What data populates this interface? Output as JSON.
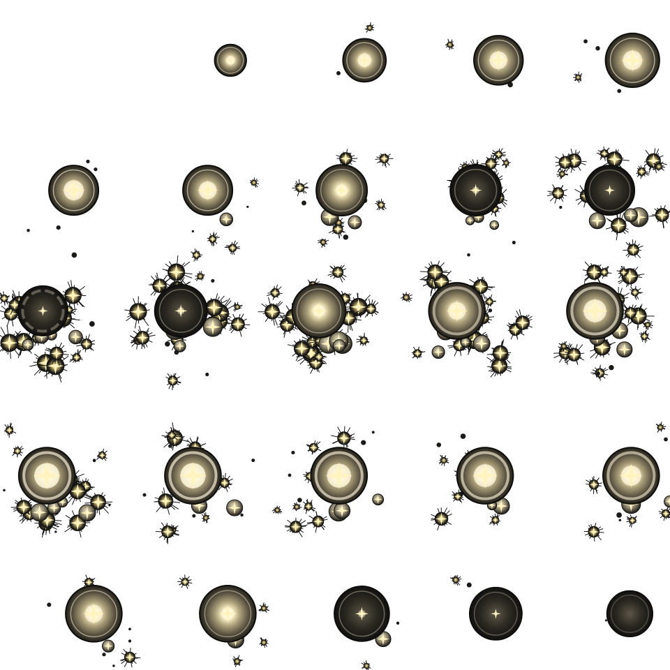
{
  "sheet": {
    "kind": "sprite-sheet",
    "rows": 5,
    "columns": 5,
    "frame_count": 24,
    "background": "#ffffff",
    "colors": {
      "orb_glow": "#fff8dc",
      "orb_gold": "#e8d8a0",
      "orb_mid": "#6e6650",
      "orb_dark": "#1e1c18",
      "rim": "#d8d0b8",
      "spark": "#fff4c0"
    },
    "frames": [
      {
        "index": 1,
        "phase": "empty"
      },
      {
        "index": 2,
        "phase": "spawn",
        "orb": 0.22,
        "bright": 0.6,
        "debris": 0.05,
        "burst": 0.0,
        "ring": 0
      },
      {
        "index": 3,
        "phase": "grow",
        "orb": 0.29,
        "bright": 0.7,
        "debris": 0.1,
        "burst": 0.0,
        "ring": 0
      },
      {
        "index": 4,
        "phase": "grow",
        "orb": 0.32,
        "bright": 0.8,
        "debris": 0.15,
        "burst": 0.0,
        "ring": 0
      },
      {
        "index": 5,
        "phase": "grow",
        "orb": 0.34,
        "bright": 0.8,
        "debris": 0.2,
        "burst": 0.0,
        "ring": 0
      },
      {
        "index": 6,
        "phase": "charge",
        "orb": 0.37,
        "bright": 0.9,
        "debris": 0.3,
        "burst": 0.1,
        "ring": 0
      },
      {
        "index": 7,
        "phase": "charge",
        "orb": 0.37,
        "bright": 0.8,
        "debris": 0.4,
        "burst": 0.2,
        "ring": 0
      },
      {
        "index": 8,
        "phase": "burst",
        "orb": 0.38,
        "bright": 0.5,
        "debris": 0.55,
        "burst": 0.6,
        "ring": 0
      },
      {
        "index": 9,
        "phase": "burst",
        "orb": 0.38,
        "bright": 0.3,
        "debris": 0.65,
        "burst": 0.75,
        "ring": 0
      },
      {
        "index": 10,
        "phase": "burst",
        "orb": 0.37,
        "bright": 0.2,
        "debris": 0.7,
        "burst": 0.8,
        "ring": 0
      },
      {
        "index": 11,
        "phase": "explode",
        "orb": 0.37,
        "bright": 0.2,
        "debris": 0.85,
        "burst": 1.0,
        "ring": 1
      },
      {
        "index": 12,
        "phase": "explode",
        "orb": 0.39,
        "bright": 0.3,
        "debris": 0.9,
        "burst": 1.0,
        "ring": 0
      },
      {
        "index": 13,
        "phase": "explode",
        "orb": 0.4,
        "bright": 0.5,
        "debris": 0.9,
        "burst": 1.0,
        "ring": 0
      },
      {
        "index": 14,
        "phase": "explode",
        "orb": 0.42,
        "bright": 0.7,
        "debris": 0.9,
        "burst": 1.0,
        "ring": 1
      },
      {
        "index": 15,
        "phase": "explode",
        "orb": 0.42,
        "bright": 0.9,
        "debris": 0.85,
        "burst": 0.9,
        "ring": 1
      },
      {
        "index": 16,
        "phase": "flash",
        "orb": 0.42,
        "bright": 1.0,
        "debris": 0.8,
        "burst": 0.9,
        "ring": 1
      },
      {
        "index": 17,
        "phase": "flash",
        "orb": 0.42,
        "bright": 1.0,
        "debris": 0.7,
        "burst": 0.8,
        "ring": 1
      },
      {
        "index": 18,
        "phase": "flash",
        "orb": 0.42,
        "bright": 0.95,
        "debris": 0.6,
        "burst": 0.7,
        "ring": 1
      },
      {
        "index": 19,
        "phase": "settle",
        "orb": 0.42,
        "bright": 0.9,
        "debris": 0.5,
        "burst": 0.6,
        "ring": 1
      },
      {
        "index": 20,
        "phase": "settle",
        "orb": 0.42,
        "bright": 0.8,
        "debris": 0.4,
        "burst": 0.5,
        "ring": 1
      },
      {
        "index": 21,
        "phase": "fade",
        "orb": 0.42,
        "bright": 0.7,
        "debris": 0.3,
        "burst": 0.4,
        "ring": 0
      },
      {
        "index": 22,
        "phase": "fade",
        "orb": 0.42,
        "bright": 0.5,
        "debris": 0.22,
        "burst": 0.3,
        "ring": 0
      },
      {
        "index": 23,
        "phase": "fade",
        "orb": 0.41,
        "bright": 0.3,
        "debris": 0.15,
        "burst": 0.2,
        "ring": 0
      },
      {
        "index": 24,
        "phase": "fade",
        "orb": 0.39,
        "bright": 0.15,
        "debris": 0.1,
        "burst": 0.1,
        "ring": 0
      },
      {
        "index": 25,
        "phase": "fade",
        "orb": 0.34,
        "bright": 0.05,
        "debris": 0.06,
        "burst": 0.0,
        "ring": 0
      }
    ]
  }
}
